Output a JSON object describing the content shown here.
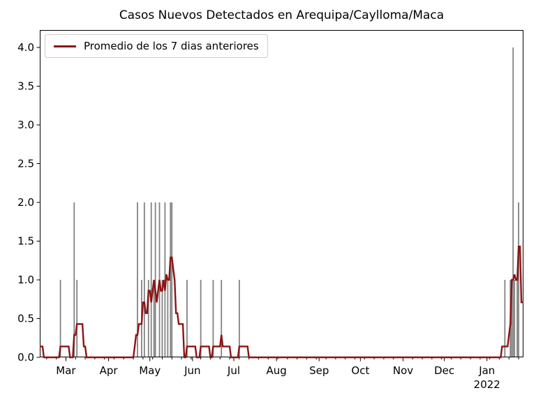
{
  "chart_data": {
    "type": "bar",
    "title": "Casos Nuevos Detectados en Arequipa/Caylloma/Maca",
    "legend": {
      "position": "upper-left",
      "entries": [
        {
          "label": "Promedio de los 7 dias anteriores",
          "color": "#8B1414",
          "type": "line"
        }
      ]
    },
    "x_axis": {
      "note": "x values are day indices from the left edge of the plot; day 0 = plot start (mid-Feb 2021)",
      "range": [
        0,
        351.5
      ],
      "major_ticks": [
        {
          "label": "Mar",
          "day": 19
        },
        {
          "label": "Apr",
          "day": 50
        },
        {
          "label": "May",
          "day": 80
        },
        {
          "label": "Jun",
          "day": 111
        },
        {
          "label": "Jul",
          "day": 141
        },
        {
          "label": "Aug",
          "day": 172
        },
        {
          "label": "Sep",
          "day": 203
        },
        {
          "label": "Oct",
          "day": 233
        },
        {
          "label": "Nov",
          "day": 264
        },
        {
          "label": "Dec",
          "day": 294
        },
        {
          "label": "Jan",
          "day": 325,
          "sublabel": "2022"
        }
      ],
      "minor_tick_start": 5,
      "minor_tick_step": 7,
      "grid": false
    },
    "y_axis": {
      "range": [
        0,
        4.225
      ],
      "ticks": [
        0.0,
        0.5,
        1.0,
        1.5,
        2.0,
        2.5,
        3.0,
        3.5,
        4.0
      ],
      "tick_labels": [
        "0.0",
        "0.5",
        "1.0",
        "1.5",
        "2.0",
        "2.5",
        "3.0",
        "3.5",
        "4.0"
      ],
      "grid": false
    },
    "bars": {
      "color": "#808080",
      "width_days": 0.9,
      "points": [
        [
          15,
          1
        ],
        [
          25,
          2
        ],
        [
          27,
          1
        ],
        [
          71,
          2
        ],
        [
          74,
          1
        ],
        [
          76,
          2
        ],
        [
          79,
          1
        ],
        [
          81,
          2
        ],
        [
          83,
          1
        ],
        [
          84,
          2
        ],
        [
          87,
          2
        ],
        [
          89,
          1
        ],
        [
          91,
          2
        ],
        [
          93,
          1
        ],
        [
          95,
          2
        ],
        [
          96,
          2
        ],
        [
          107,
          1
        ],
        [
          117,
          1
        ],
        [
          126,
          1
        ],
        [
          132,
          1
        ],
        [
          145,
          1
        ],
        [
          338,
          1
        ],
        [
          342,
          1
        ],
        [
          343,
          1
        ],
        [
          344,
          4
        ],
        [
          345,
          1
        ],
        [
          347,
          1
        ],
        [
          348,
          2
        ]
      ]
    },
    "avg_line": {
      "color": "#8B1414",
      "stroke_width": 2.4,
      "points": [
        [
          0,
          0.14
        ],
        [
          2,
          0.14
        ],
        [
          3,
          0
        ],
        [
          14,
          0
        ],
        [
          15,
          0.14
        ],
        [
          21,
          0.14
        ],
        [
          22,
          0
        ],
        [
          24,
          0
        ],
        [
          25,
          0.29
        ],
        [
          26,
          0.29
        ],
        [
          27,
          0.43
        ],
        [
          31,
          0.43
        ],
        [
          32,
          0.14
        ],
        [
          33,
          0.14
        ],
        [
          34,
          0
        ],
        [
          68,
          0
        ],
        [
          69,
          0.14
        ],
        [
          70,
          0.29
        ],
        [
          71,
          0.29
        ],
        [
          72,
          0.43
        ],
        [
          74,
          0.43
        ],
        [
          75,
          0.71
        ],
        [
          76,
          0.71
        ],
        [
          77,
          0.57
        ],
        [
          78,
          0.57
        ],
        [
          79,
          0.86
        ],
        [
          80,
          0.86
        ],
        [
          81,
          0.71
        ],
        [
          82,
          0.86
        ],
        [
          83,
          1.0
        ],
        [
          84,
          0.86
        ],
        [
          85,
          0.71
        ],
        [
          86,
          0.86
        ],
        [
          87,
          1.0
        ],
        [
          88,
          0.86
        ],
        [
          89,
          0.86
        ],
        [
          90,
          1.0
        ],
        [
          91,
          0.86
        ],
        [
          92,
          1.07
        ],
        [
          93,
          1.0
        ],
        [
          94,
          1.0
        ],
        [
          95,
          1.29
        ],
        [
          96,
          1.29
        ],
        [
          97,
          1.14
        ],
        [
          98,
          1.0
        ],
        [
          99,
          0.57
        ],
        [
          100,
          0.57
        ],
        [
          101,
          0.43
        ],
        [
          104,
          0.43
        ],
        [
          105,
          0
        ],
        [
          106,
          0
        ],
        [
          107,
          0.14
        ],
        [
          113,
          0.14
        ],
        [
          114,
          0
        ],
        [
          116,
          0
        ],
        [
          117,
          0.14
        ],
        [
          123,
          0.14
        ],
        [
          124,
          0
        ],
        [
          125,
          0
        ],
        [
          126,
          0.14
        ],
        [
          131,
          0.14
        ],
        [
          132,
          0.29
        ],
        [
          133,
          0.14
        ],
        [
          138,
          0.14
        ],
        [
          139,
          0
        ],
        [
          144,
          0
        ],
        [
          145,
          0.14
        ],
        [
          151,
          0.14
        ],
        [
          152,
          0
        ],
        [
          335,
          0
        ],
        [
          336,
          0.14
        ],
        [
          340,
          0.14
        ],
        [
          341,
          0.29
        ],
        [
          342,
          0.43
        ],
        [
          343,
          1.0
        ],
        [
          344,
          1.0
        ],
        [
          345,
          1.07
        ],
        [
          346,
          1.0
        ],
        [
          347,
          1.0
        ],
        [
          348,
          1.43
        ],
        [
          349,
          1.43
        ],
        [
          350,
          0.71
        ],
        [
          351.5,
          0.71
        ]
      ]
    }
  }
}
